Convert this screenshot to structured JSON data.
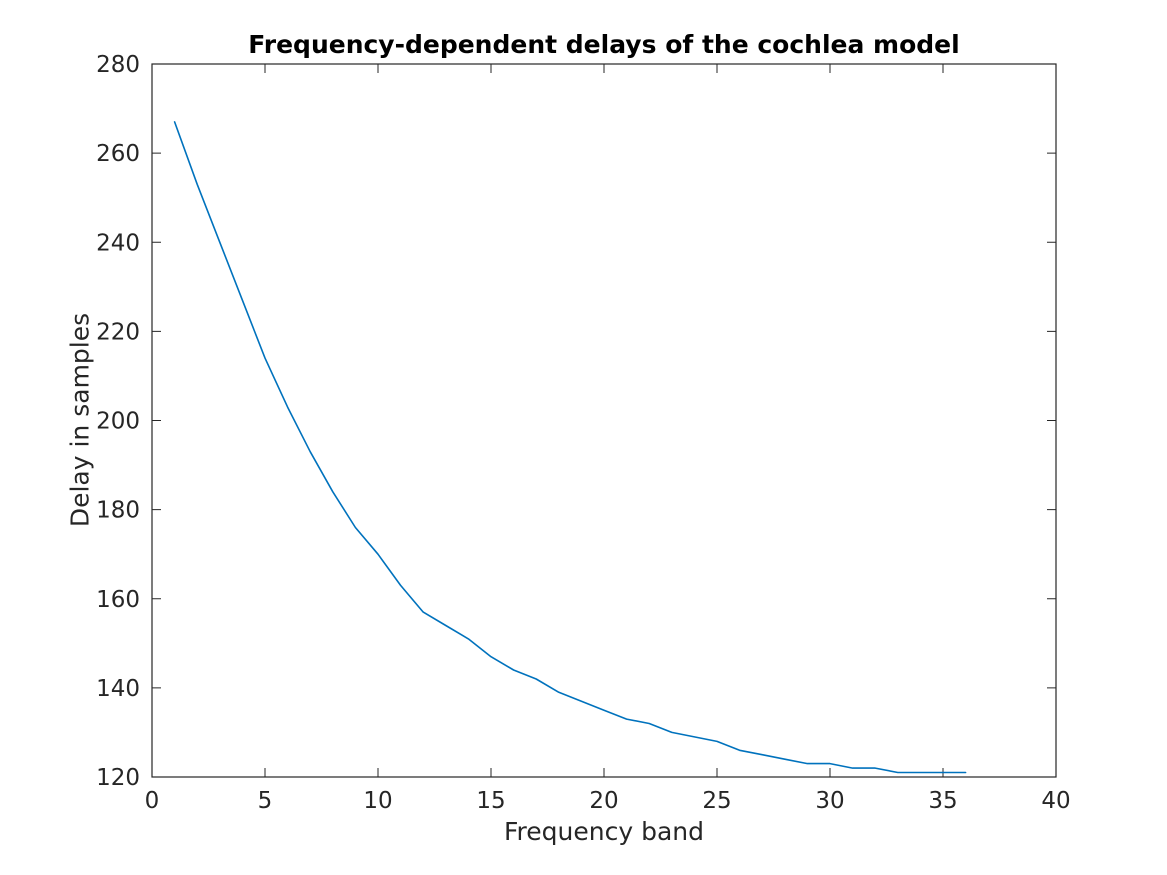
{
  "page": {
    "background_color": "#ffffff",
    "text_color": "#262626",
    "title_color": "#000000"
  },
  "chart_data": {
    "type": "line",
    "title": "Frequency-dependent delays of the cochlea model",
    "xlabel": "Frequency band",
    "ylabel": "Delay in samples",
    "xlim": [
      0,
      40
    ],
    "ylim": [
      120,
      280
    ],
    "x_ticks": [
      0,
      5,
      10,
      15,
      20,
      25,
      30,
      35,
      40
    ],
    "y_ticks": [
      120,
      140,
      160,
      180,
      200,
      220,
      240,
      260,
      280
    ],
    "grid": false,
    "box": true,
    "legend": "none",
    "line_color": "#0072BD",
    "axis_color": "#262626",
    "series": [
      {
        "name": "delay-curve",
        "x": [
          1,
          2,
          3,
          4,
          5,
          6,
          7,
          8,
          9,
          10,
          11,
          12,
          13,
          14,
          15,
          16,
          17,
          18,
          19,
          20,
          21,
          22,
          23,
          24,
          25,
          26,
          27,
          28,
          29,
          30,
          31,
          32,
          33,
          34,
          35,
          36
        ],
        "values": [
          267,
          253,
          240,
          227,
          214,
          203,
          193,
          184,
          176,
          170,
          163,
          157,
          154,
          151,
          147,
          144,
          142,
          139,
          137,
          135,
          133,
          132,
          130,
          129,
          128,
          126,
          125,
          124,
          123,
          123,
          122,
          122,
          121,
          121,
          121,
          121
        ]
      }
    ]
  }
}
